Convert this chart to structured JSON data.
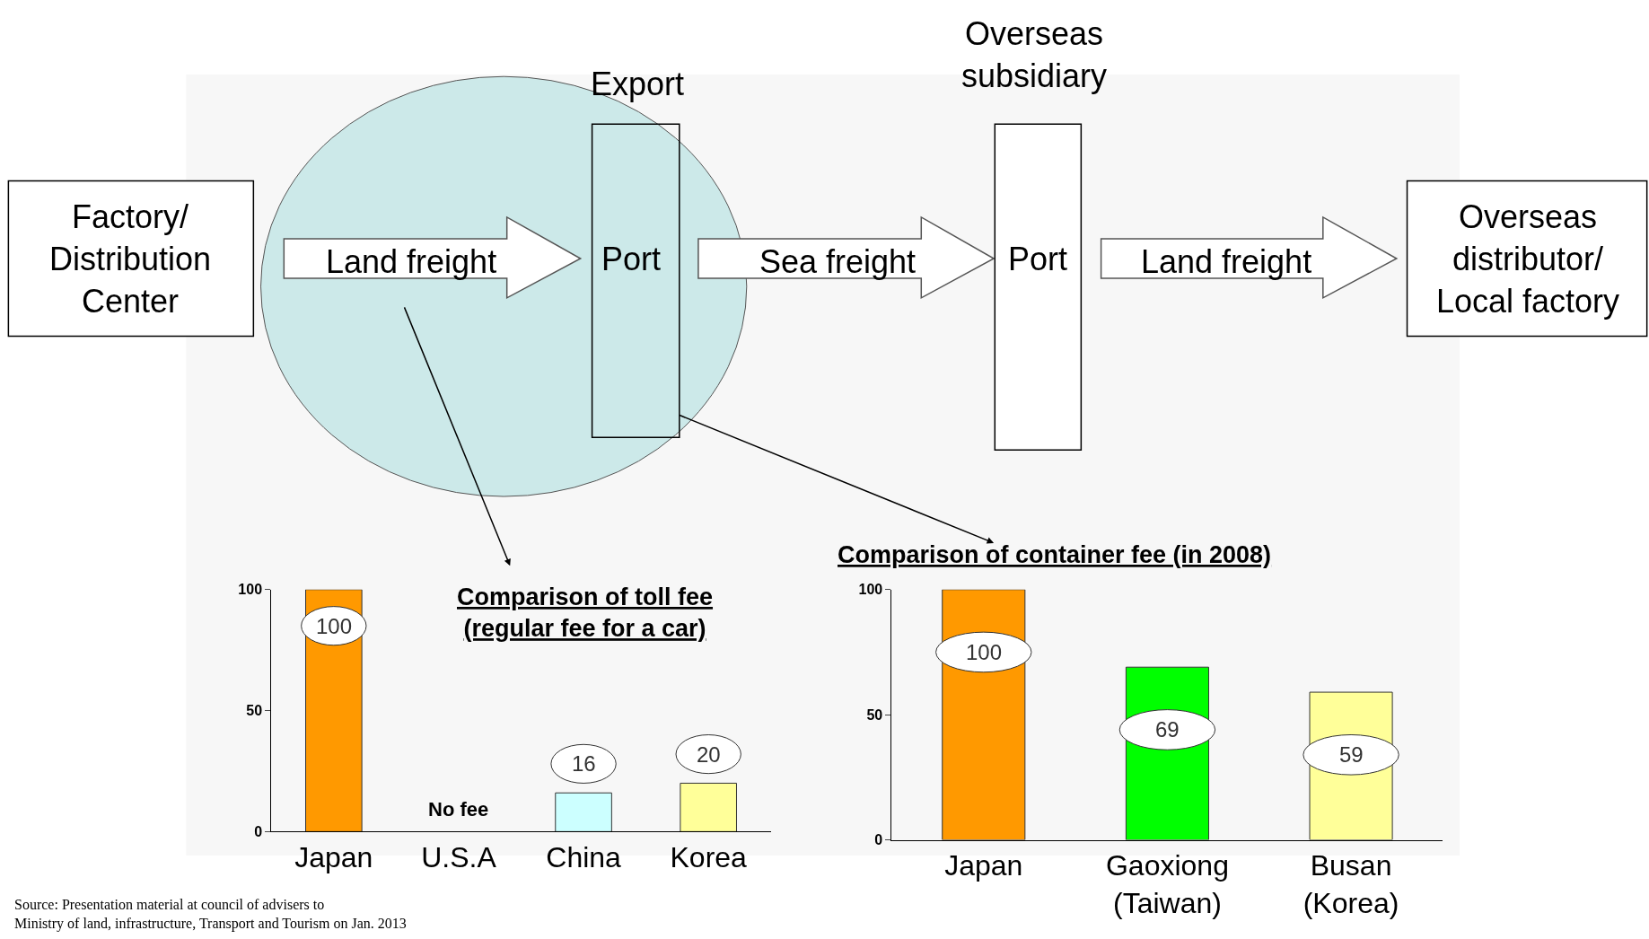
{
  "chart_data": [
    {
      "type": "other",
      "annotations": [
        "Factory/\nDistribution\nCenter",
        "Land freight",
        "Export",
        "Port",
        "Sea freight",
        "Overseas\nsubsidiary",
        "Port",
        "Land freight",
        "Overseas\ndistributor/\nLocal factory",
        "Source: Presentation material at council of advisers to\nMinistry of land, infrastructure, Transport and Tourism on Jan. 2013"
      ]
    },
    {
      "type": "bar",
      "title": "Comparison of toll fee\n(regular fee for a car)",
      "categories": [
        "Japan",
        "U.S.A",
        "China",
        "Korea"
      ],
      "values": [
        100,
        0,
        16,
        20
      ],
      "colors": [
        "#ff9900",
        "#ffffff",
        "#ccffff",
        "#ffff99"
      ],
      "value_labels": [
        "100",
        null,
        "16",
        "20"
      ],
      "ylim": [
        0,
        100
      ],
      "yticks": [
        0,
        50,
        100
      ],
      "grid": false,
      "annotations": [
        {
          "text": "No fee",
          "x": "U.S.A",
          "y": 0
        }
      ]
    },
    {
      "type": "bar",
      "title": "Comparison of container fee (in 2008)",
      "categories": [
        "Japan",
        "Gaoxiong\n(Taiwan)",
        "Busan\n(Korea)"
      ],
      "values": [
        100,
        69,
        59
      ],
      "colors": [
        "#ff9900",
        "#00ff00",
        "#ffff99"
      ],
      "value_labels": [
        "100",
        "69",
        "59"
      ],
      "ylim": [
        0,
        100
      ],
      "yticks": [
        0,
        50,
        100
      ],
      "grid": false
    }
  ]
}
